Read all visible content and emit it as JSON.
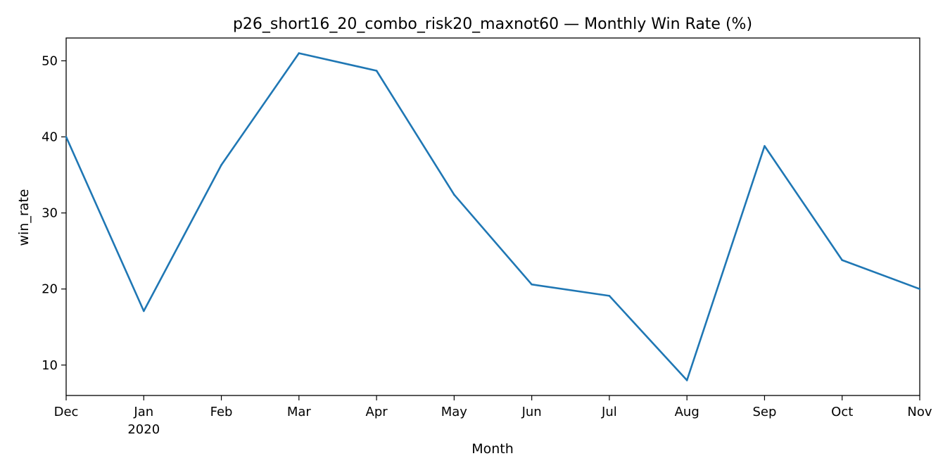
{
  "chart_data": {
    "type": "line",
    "title": "p26_short16_20_combo_risk20_maxnot60 — Monthly Win Rate (%)",
    "xlabel": "Month",
    "ylabel": "win_rate",
    "x_tick_labels": [
      "Dec",
      "Jan",
      "Feb",
      "Mar",
      "Apr",
      "May",
      "Jun",
      "Jul",
      "Aug",
      "Sep",
      "Oct",
      "Nov"
    ],
    "x_year_label": "2020",
    "x": [
      "2019-12",
      "2020-01",
      "2020-02",
      "2020-03",
      "2020-04",
      "2020-05",
      "2020-06",
      "2020-07",
      "2020-08",
      "2020-09",
      "2020-10",
      "2020-11"
    ],
    "series": [
      {
        "values": [
          40.0,
          17.1,
          36.3,
          51.0,
          48.7,
          32.4,
          20.6,
          19.1,
          8.0,
          38.8,
          23.8,
          20.0
        ],
        "color": "#1f77b4"
      }
    ],
    "yticks": [
      10,
      20,
      30,
      40,
      50
    ],
    "ylim": [
      6.0,
      53.0
    ],
    "grid": false,
    "legend": "none"
  }
}
